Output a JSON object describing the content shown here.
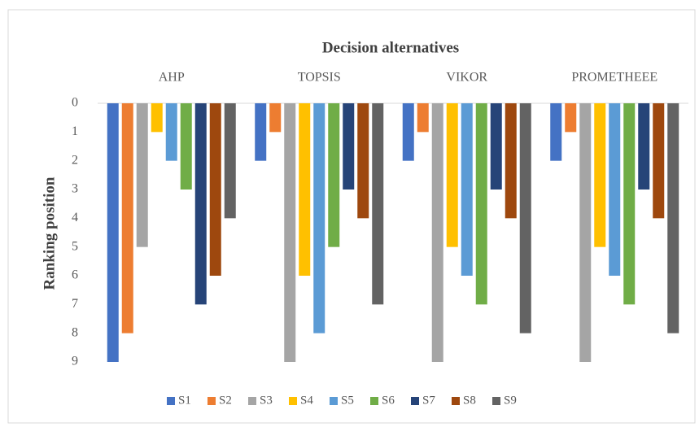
{
  "chart_data": {
    "type": "bar",
    "title": "Decision alternatives",
    "y_label": "Ranking position",
    "categories": [
      "AHP",
      "TOPSIS",
      "VIKOR",
      "PROMETHEEE"
    ],
    "series": [
      {
        "name": "S1",
        "color": "#4472c4",
        "values": [
          9,
          2,
          2,
          2
        ]
      },
      {
        "name": "S2",
        "color": "#ed7d31",
        "values": [
          8,
          1,
          1,
          1
        ]
      },
      {
        "name": "S3",
        "color": "#a5a5a5",
        "values": [
          5,
          9,
          9,
          9
        ]
      },
      {
        "name": "S4",
        "color": "#ffc000",
        "values": [
          1,
          6,
          5,
          5
        ]
      },
      {
        "name": "S5",
        "color": "#5b9bd5",
        "values": [
          2,
          8,
          6,
          6
        ]
      },
      {
        "name": "S6",
        "color": "#70ad47",
        "values": [
          3,
          5,
          7,
          7
        ]
      },
      {
        "name": "S7",
        "color": "#264478",
        "values": [
          7,
          3,
          3,
          3
        ]
      },
      {
        "name": "S8",
        "color": "#9e480e",
        "values": [
          6,
          4,
          4,
          4
        ]
      },
      {
        "name": "S9",
        "color": "#636363",
        "values": [
          4,
          7,
          8,
          8
        ]
      }
    ],
    "ylim": [
      0,
      9
    ],
    "yticks": [
      0,
      1,
      2,
      3,
      4,
      5,
      6,
      7,
      8,
      9
    ],
    "y_inverted": true,
    "grid": false,
    "legend": "bottom"
  }
}
